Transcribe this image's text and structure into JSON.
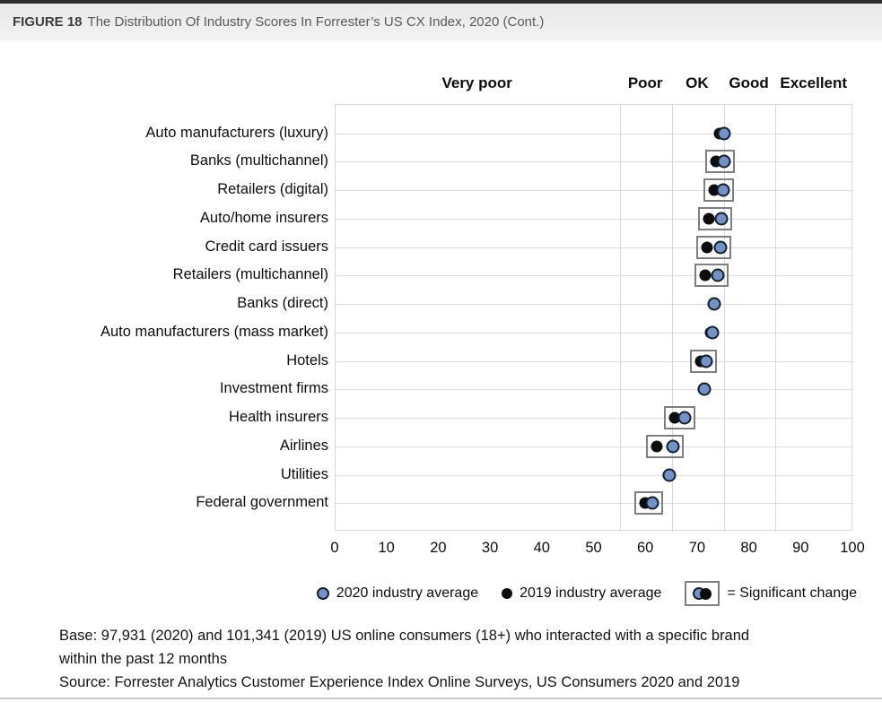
{
  "header": {
    "figure_label": "FIGURE 18",
    "title": "The Distribution Of Industry Scores In Forrester’s US CX Index, 2020 (Cont.)"
  },
  "chart_data": {
    "type": "scatter",
    "subtype": "horizontal-dot-plot",
    "title": "The Distribution Of Industry Scores In Forrester’s US CX Index, 2020 (Cont.)",
    "xlabel": "",
    "ylabel": "",
    "xlim": [
      0,
      100
    ],
    "x_ticks": [
      0,
      10,
      20,
      30,
      40,
      50,
      60,
      70,
      80,
      90,
      100
    ],
    "grid": true,
    "legend_position": "bottom",
    "bands": [
      {
        "label": "Very poor",
        "from": 0,
        "to": 55
      },
      {
        "label": "Poor",
        "from": 55,
        "to": 65
      },
      {
        "label": "OK",
        "from": 65,
        "to": 75
      },
      {
        "label": "Good",
        "from": 75,
        "to": 85
      },
      {
        "label": "Excellent",
        "from": 85,
        "to": 100
      }
    ],
    "series": [
      {
        "key": "score_2020",
        "name": "2020 industry average",
        "color": "#7492c5"
      },
      {
        "key": "score_2019",
        "name": "2019 industry average",
        "color": "#0d0d0d"
      }
    ],
    "rows": [
      {
        "category": "Auto manufacturers (luxury)",
        "score_2019": 74.2,
        "score_2020": 75.0,
        "significant": false
      },
      {
        "category": "Banks (multichannel)",
        "score_2019": 73.5,
        "score_2020": 75.0,
        "significant": true
      },
      {
        "category": "Retailers (digital)",
        "score_2019": 73.1,
        "score_2020": 74.9,
        "significant": true
      },
      {
        "category": "Auto/home insurers",
        "score_2019": 72.1,
        "score_2020": 74.5,
        "significant": true
      },
      {
        "category": "Credit card issuers",
        "score_2019": 71.8,
        "score_2020": 74.3,
        "significant": true
      },
      {
        "category": "Retailers (multichannel)",
        "score_2019": 71.4,
        "score_2020": 73.8,
        "significant": true
      },
      {
        "category": "Banks (direct)",
        "score_2019": 72.9,
        "score_2020": 73.2,
        "significant": false
      },
      {
        "category": "Auto manufacturers (mass market)",
        "score_2019": 72.5,
        "score_2020": 72.8,
        "significant": false
      },
      {
        "category": "Hotels",
        "score_2019": 70.6,
        "score_2020": 71.6,
        "significant": true
      },
      {
        "category": "Investment firms",
        "score_2019": 71.1,
        "score_2020": 71.3,
        "significant": false
      },
      {
        "category": "Health insurers",
        "score_2019": 65.5,
        "score_2020": 67.5,
        "significant": true
      },
      {
        "category": "Airlines",
        "score_2019": 62.1,
        "score_2020": 65.2,
        "significant": true
      },
      {
        "category": "Utilities",
        "score_2019": 64.3,
        "score_2020": 64.4,
        "significant": false
      },
      {
        "category": "Federal government",
        "score_2019": 59.8,
        "score_2020": 61.2,
        "significant": true
      }
    ]
  },
  "legend": {
    "item_2020": "2020 industry average",
    "item_2019": "2019 industry average",
    "item_significant": "= Significant change"
  },
  "footer": {
    "base_line1": "Base: 97,931 (2020) and 101,341 (2019) US online consumers (18+) who interacted with a specific brand",
    "base_line2": "within the past 12 months",
    "source_line": "Source: Forrester Analytics Customer Experience Index Online Surveys, US Consumers 2020 and 2019"
  },
  "colors": {
    "dot_2020_fill": "#7492c5",
    "dot_2020_stroke": "#131f2e",
    "dot_2019": "#0d0d0d",
    "significant_box_stroke": "#7f7f7f",
    "gridline": "#d8d8d8",
    "header_bg": "#ededed",
    "top_border": "#2e2e2e"
  }
}
